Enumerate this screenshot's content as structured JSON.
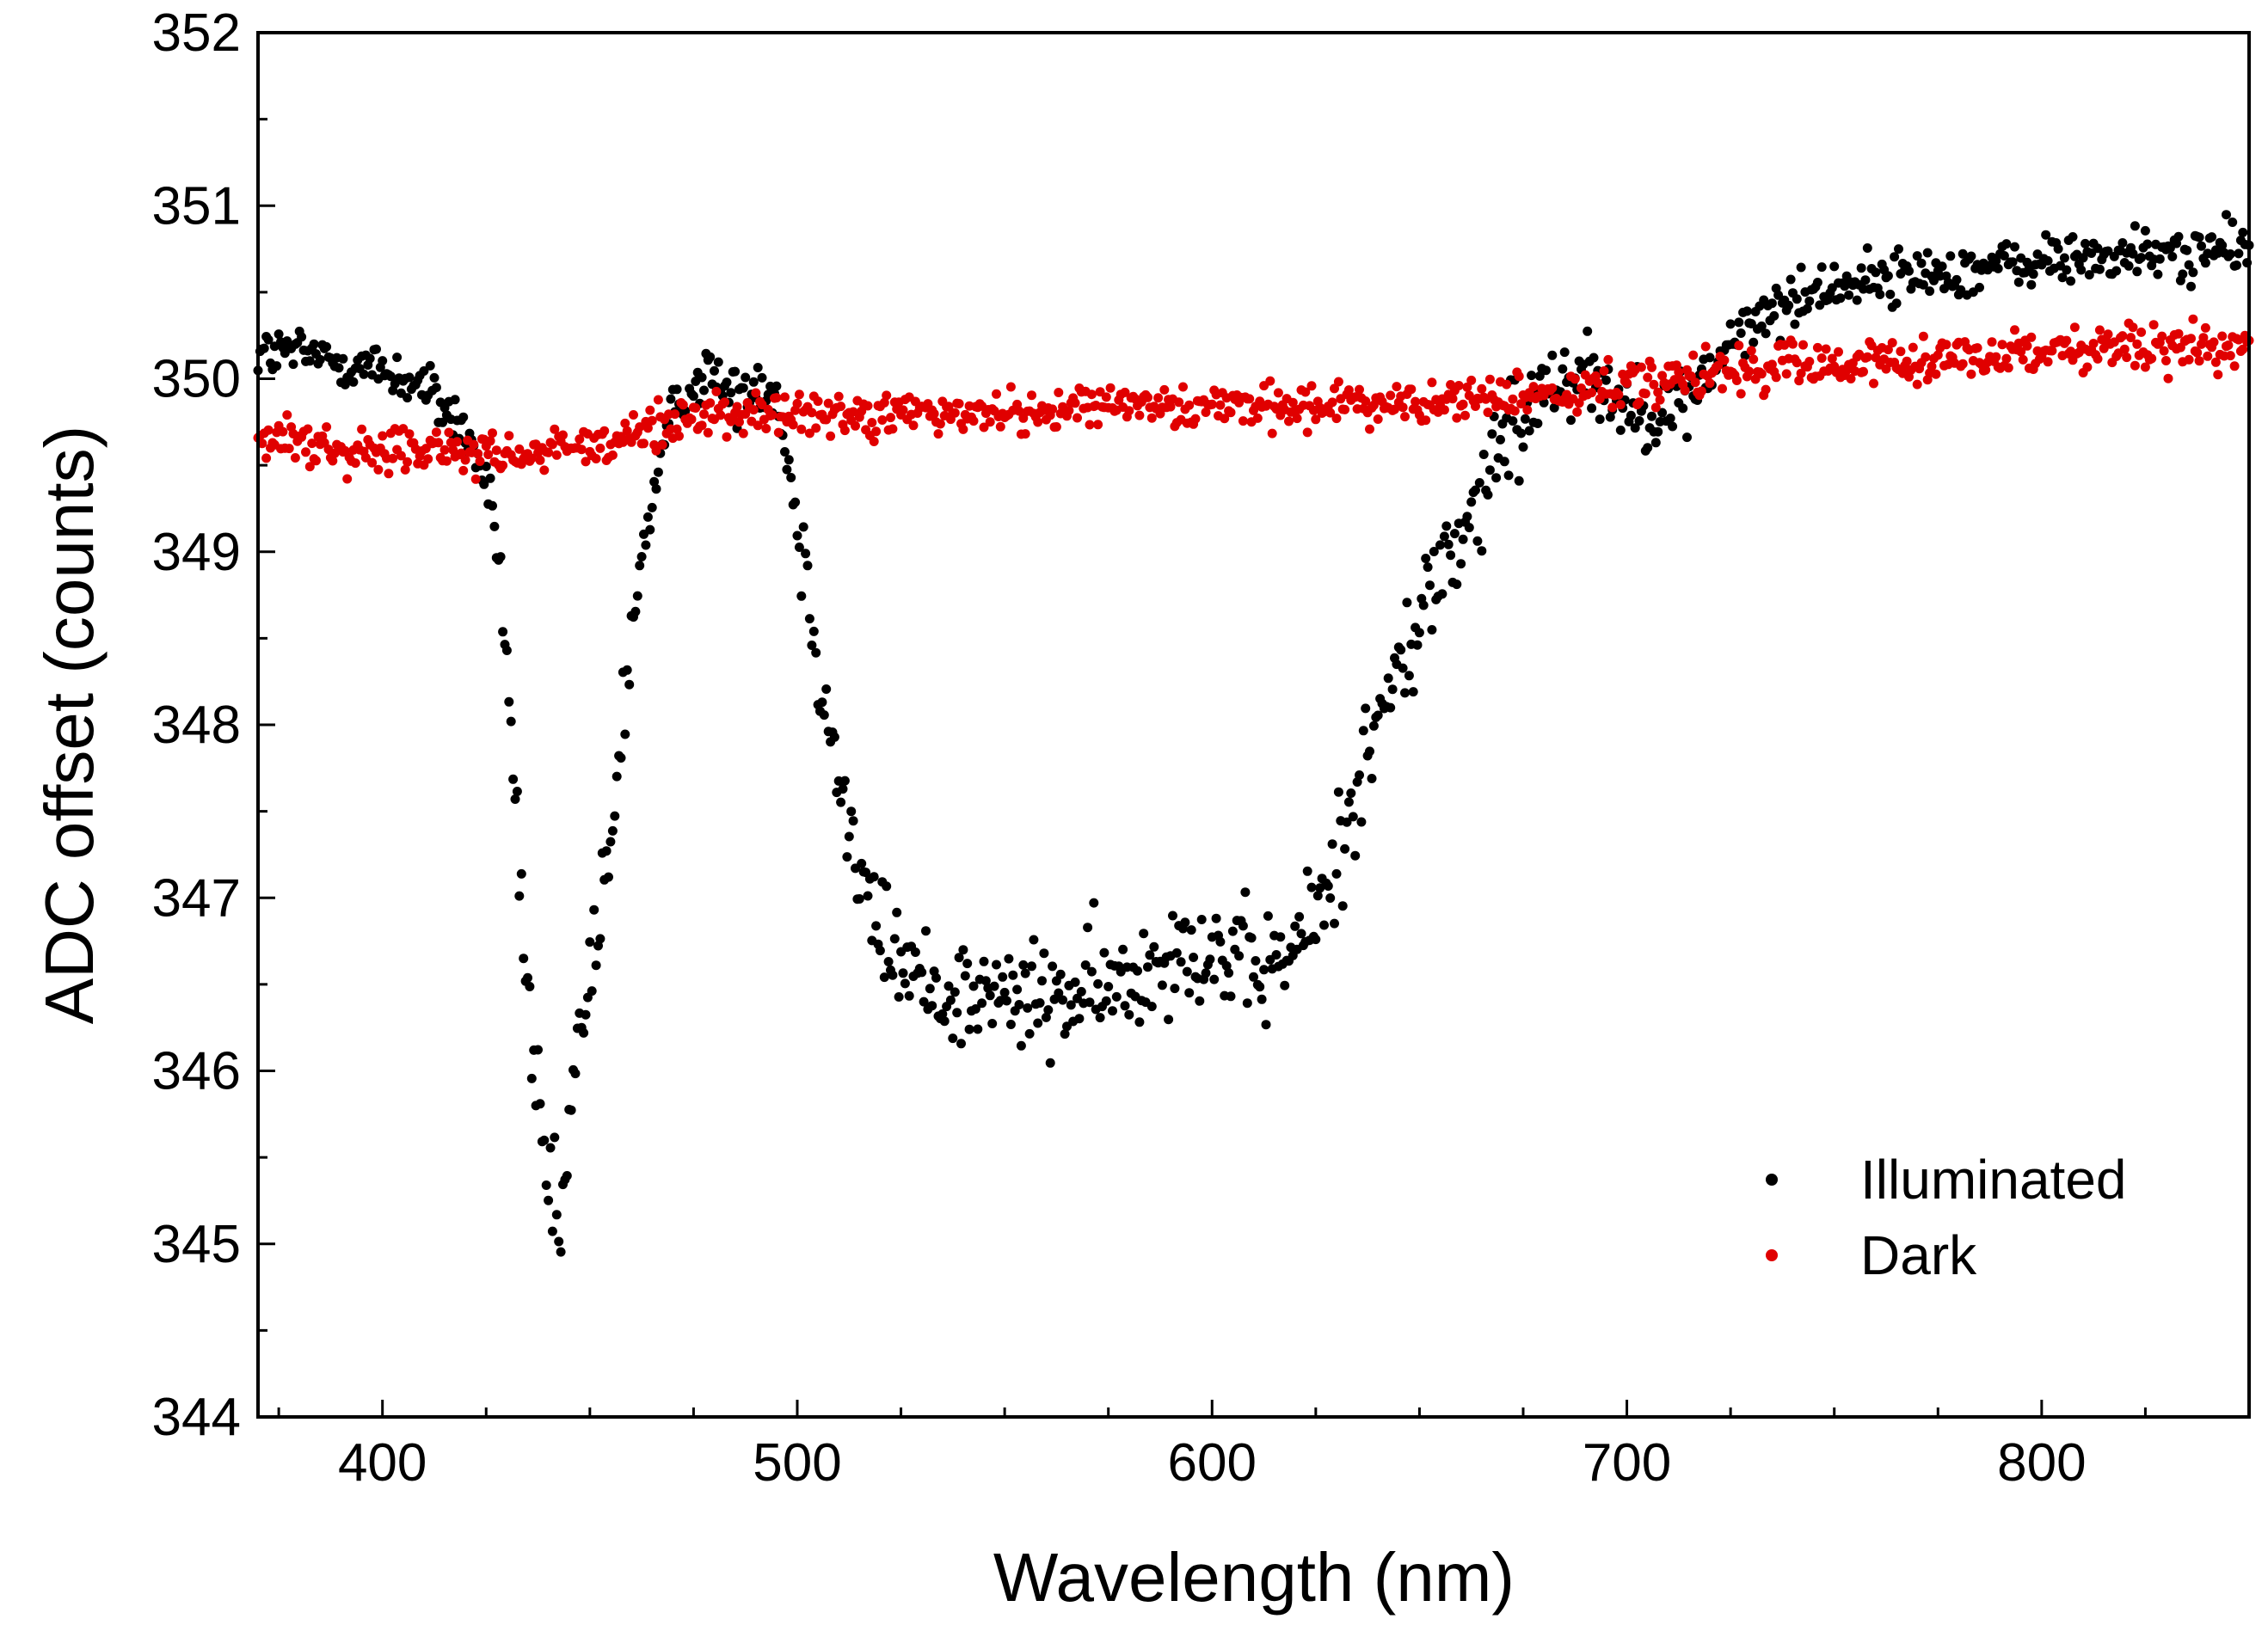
{
  "chart_data": {
    "type": "scatter",
    "title": "",
    "xlabel": "Wavelength (nm)",
    "ylabel": "ADC offset (counts)",
    "xlim": [
      370,
      850
    ],
    "ylim": [
      344,
      352
    ],
    "x_ticks": [
      400,
      500,
      600,
      700,
      800
    ],
    "y_ticks": [
      344,
      345,
      346,
      347,
      348,
      349,
      350,
      351,
      352
    ],
    "grid": false,
    "legend_position": "bottom-right",
    "x_step_nm": 0.5,
    "series": [
      {
        "name": "Illuminated",
        "color": "#000000",
        "profile": [
          [
            370,
            350.15
          ],
          [
            380,
            350.15
          ],
          [
            390,
            350.1
          ],
          [
            400,
            350.05
          ],
          [
            410,
            349.95
          ],
          [
            420,
            349.7
          ],
          [
            425,
            349.4
          ],
          [
            428,
            349.0
          ],
          [
            432,
            347.6
          ],
          [
            436,
            346.0
          ],
          [
            440,
            345.3
          ],
          [
            443,
            345.05
          ],
          [
            446,
            345.9
          ],
          [
            450,
            346.6
          ],
          [
            455,
            347.2
          ],
          [
            460,
            348.6
          ],
          [
            465,
            349.3
          ],
          [
            470,
            349.8
          ],
          [
            478,
            350.05
          ],
          [
            485,
            349.9
          ],
          [
            490,
            350.0
          ],
          [
            495,
            349.9
          ],
          [
            500,
            349.2
          ],
          [
            505,
            348.4
          ],
          [
            510,
            347.7
          ],
          [
            515,
            347.1
          ],
          [
            520,
            346.8
          ],
          [
            530,
            346.5
          ],
          [
            540,
            346.45
          ],
          [
            560,
            346.4
          ],
          [
            580,
            346.5
          ],
          [
            590,
            346.75
          ],
          [
            600,
            346.7
          ],
          [
            610,
            346.55
          ],
          [
            620,
            346.7
          ],
          [
            625,
            346.9
          ],
          [
            630,
            347.2
          ],
          [
            635,
            347.7
          ],
          [
            640,
            348.0
          ],
          [
            645,
            348.3
          ],
          [
            650,
            348.6
          ],
          [
            655,
            348.9
          ],
          [
            660,
            349.1
          ],
          [
            665,
            349.3
          ],
          [
            670,
            349.6
          ],
          [
            675,
            349.75
          ],
          [
            680,
            350.0
          ],
          [
            690,
            350.05
          ],
          [
            700,
            349.85
          ],
          [
            710,
            349.8
          ],
          [
            715,
            349.9
          ],
          [
            725,
            350.2
          ],
          [
            735,
            350.4
          ],
          [
            750,
            350.55
          ],
          [
            770,
            350.6
          ],
          [
            790,
            350.65
          ],
          [
            810,
            350.7
          ],
          [
            830,
            350.72
          ],
          [
            850,
            350.75
          ]
        ]
      },
      {
        "name": "Dark",
        "color": "#e00000",
        "profile": [
          [
            370,
            349.65
          ],
          [
            400,
            349.6
          ],
          [
            430,
            349.55
          ],
          [
            450,
            349.6
          ],
          [
            480,
            349.8
          ],
          [
            500,
            349.8
          ],
          [
            550,
            349.8
          ],
          [
            600,
            349.85
          ],
          [
            650,
            349.85
          ],
          [
            700,
            349.95
          ],
          [
            750,
            350.1
          ],
          [
            800,
            350.15
          ],
          [
            850,
            350.2
          ]
        ]
      }
    ]
  }
}
